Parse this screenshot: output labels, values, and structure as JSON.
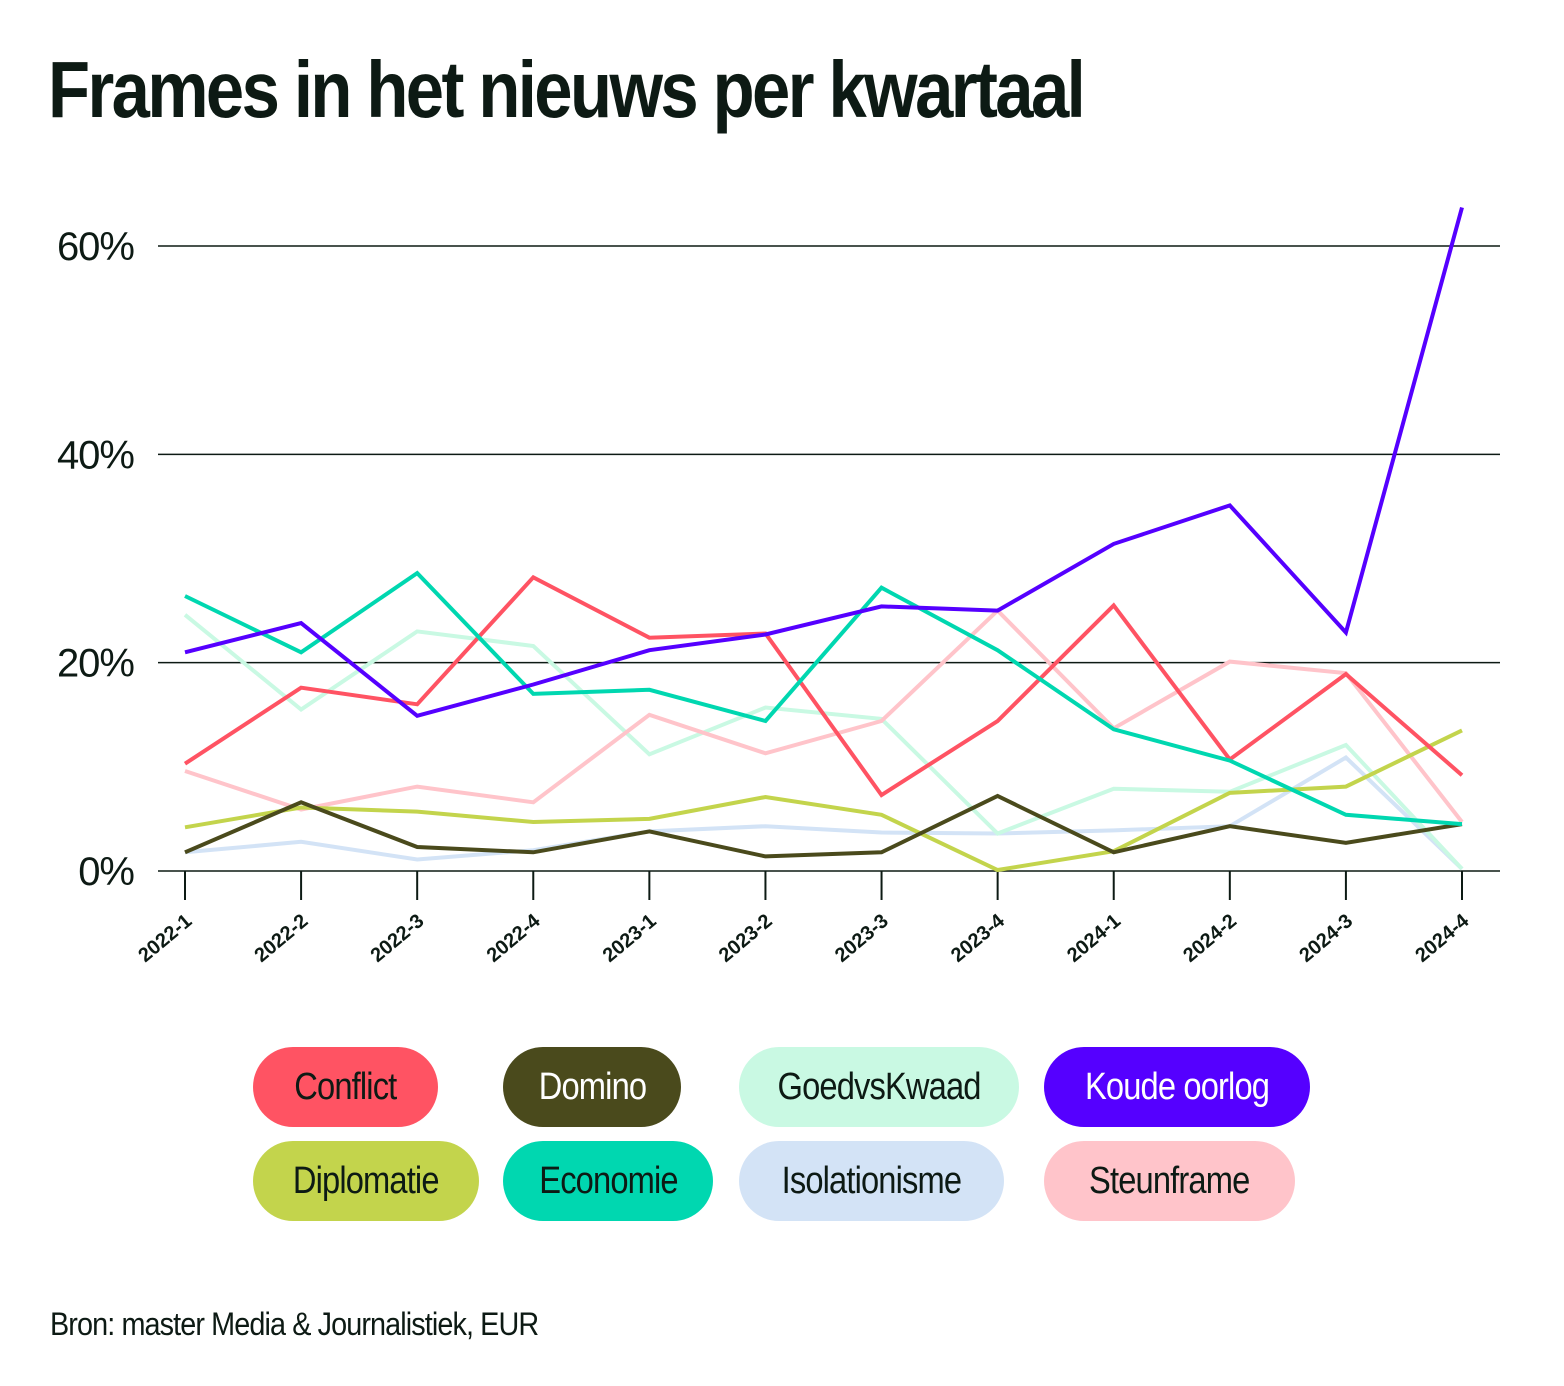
{
  "page": {
    "title": "Frames in het nieuws per kwartaal",
    "source": "Bron: master Media & Journalistiek, EUR"
  },
  "chart_data": {
    "type": "line",
    "title": "Frames in het nieuws per kwartaal",
    "xlabel": "",
    "ylabel": "",
    "ylim": [
      0,
      60
    ],
    "yticks": [
      "0%",
      "20%",
      "40%",
      "60%"
    ],
    "ytick_values": [
      0,
      20,
      40,
      60
    ],
    "grid": true,
    "legend_position": "bottom",
    "categories": [
      "2022-1",
      "2022-2",
      "2022-3",
      "2022-4",
      "2023-1",
      "2023-2",
      "2023-3",
      "2023-4",
      "2024-1",
      "2024-2",
      "2024-3",
      "2024-4"
    ],
    "series": [
      {
        "name": "Isolationisme",
        "color": "#d3e3f6",
        "values": [
          1.8,
          2.8,
          1.1,
          2.0,
          3.8,
          4.3,
          3.7,
          3.6,
          3.9,
          4.3,
          10.9,
          0.2
        ]
      },
      {
        "name": "GoedvsKwaad",
        "color": "#c9f9e3",
        "values": [
          24.6,
          15.5,
          23.0,
          21.6,
          11.2,
          15.7,
          14.6,
          3.6,
          7.9,
          7.6,
          12.1,
          0.2
        ]
      },
      {
        "name": "Steunframe",
        "color": "#ffc4ca",
        "values": [
          9.6,
          5.9,
          8.1,
          6.6,
          15.0,
          11.3,
          14.4,
          25.0,
          13.7,
          20.1,
          19.0,
          4.7
        ]
      },
      {
        "name": "Diplomatie",
        "color": "#c3d44c",
        "values": [
          4.2,
          6.1,
          5.7,
          4.7,
          5.0,
          7.1,
          5.4,
          0.1,
          1.9,
          7.5,
          8.1,
          13.5
        ]
      },
      {
        "name": "Domino",
        "color": "#4a4a1c",
        "values": [
          1.8,
          6.6,
          2.3,
          1.8,
          3.8,
          1.4,
          1.8,
          7.2,
          1.8,
          4.3,
          2.7,
          4.5
        ]
      },
      {
        "name": "Conflict",
        "color": "#ff5363",
        "values": [
          10.3,
          17.6,
          16.0,
          28.2,
          22.4,
          22.8,
          7.3,
          14.4,
          25.5,
          10.7,
          18.9,
          9.2
        ]
      },
      {
        "name": "Economie",
        "color": "#00d7b0",
        "values": [
          26.4,
          21.0,
          28.6,
          17.0,
          17.4,
          14.4,
          27.2,
          21.2,
          13.6,
          10.6,
          5.4,
          4.5
        ]
      },
      {
        "name": "Koude oorlog",
        "color": "#5500ff",
        "values": [
          21.0,
          23.8,
          14.9,
          17.9,
          21.2,
          22.7,
          25.4,
          25.0,
          31.4,
          35.1,
          22.9,
          63.7
        ]
      }
    ]
  },
  "legend": {
    "items": [
      {
        "label": "Conflict",
        "bg": "#ff5363",
        "fg": "#0d1a14"
      },
      {
        "label": "Domino",
        "bg": "#4a4a1c",
        "fg": "#ffffff"
      },
      {
        "label": "GoedvsKwaad",
        "bg": "#c9f9e3",
        "fg": "#0d1a14"
      },
      {
        "label": "Koude oorlog",
        "bg": "#5500ff",
        "fg": "#ffffff"
      },
      {
        "label": "Diplomatie",
        "bg": "#c3d44c",
        "fg": "#0d1a14"
      },
      {
        "label": "Economie",
        "bg": "#00d7b0",
        "fg": "#0d1a14"
      },
      {
        "label": "Isolationisme",
        "bg": "#d3e3f6",
        "fg": "#0d1a14"
      },
      {
        "label": "Steunframe",
        "bg": "#ffc4ca",
        "fg": "#0d1a14"
      }
    ]
  }
}
